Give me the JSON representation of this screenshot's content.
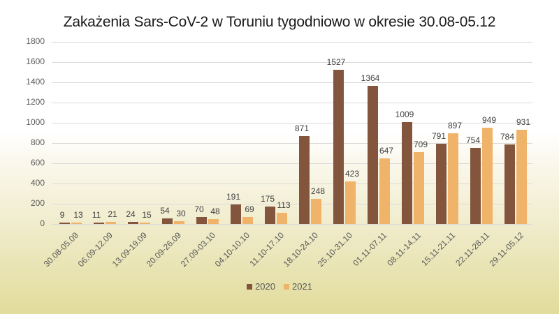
{
  "chart_data": {
    "type": "bar",
    "title": "Zakażenia Sars-CoV-2 w Toruniu tygodniowo w okresie 30.08-05.12",
    "xlabel": "",
    "ylabel": "",
    "ylim": [
      0,
      1800
    ],
    "yticks": [
      0,
      200,
      400,
      600,
      800,
      1000,
      1200,
      1400,
      1600,
      1800
    ],
    "grid": true,
    "legend_position": "bottom",
    "categories": [
      "30.08-05.09",
      "06.09-12.09",
      "13.09-19.09",
      "20.09-26.09",
      "27.09-03.10",
      "04.10-10.10",
      "11.10-17.10",
      "18.10-24.10",
      "25.10-31.10",
      "01.11-07.11",
      "08.11-14.11",
      "15.11-21.11",
      "22.11-28.11",
      "29.11-05.12"
    ],
    "series": [
      {
        "name": "2020",
        "color": "#84553d",
        "values": [
          9,
          11,
          24,
          54,
          70,
          191,
          175,
          871,
          1527,
          1364,
          1009,
          791,
          754,
          784
        ]
      },
      {
        "name": "2021",
        "color": "#f0b36a",
        "values": [
          13,
          21,
          15,
          30,
          48,
          69,
          113,
          248,
          423,
          647,
          709,
          897,
          949,
          931
        ]
      }
    ]
  }
}
